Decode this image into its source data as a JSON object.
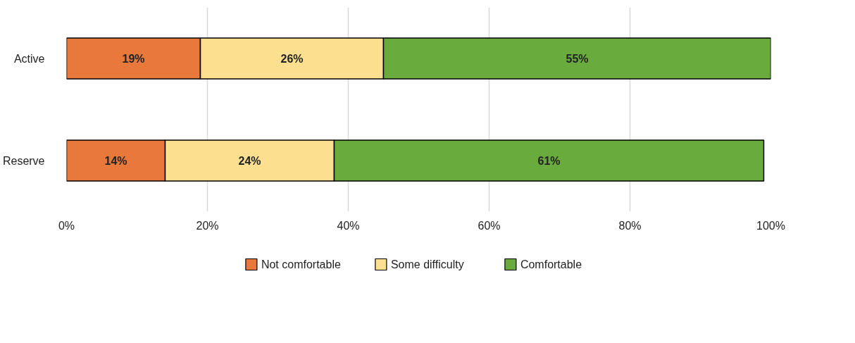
{
  "chart_data": {
    "type": "bar",
    "orientation": "horizontal",
    "stacked": true,
    "categories": [
      "Active",
      "Reserve"
    ],
    "series": [
      {
        "name": "Not comfortable",
        "color": "#e8793a",
        "values": [
          19,
          14
        ],
        "value_labels": [
          "19%",
          "14%"
        ]
      },
      {
        "name": "Some difficulty",
        "color": "#fde08f",
        "values": [
          26,
          24
        ],
        "value_labels": [
          "26%",
          "24%"
        ]
      },
      {
        "name": "Comfortable",
        "color": "#6aab3e",
        "values": [
          55,
          61
        ],
        "value_labels": [
          "55%",
          "61%"
        ]
      }
    ],
    "xlim": [
      0,
      100
    ],
    "xticks": [
      {
        "value": 0,
        "label": "0%"
      },
      {
        "value": 20,
        "label": "20%"
      },
      {
        "value": 40,
        "label": "40%"
      },
      {
        "value": 60,
        "label": "60%"
      },
      {
        "value": 80,
        "label": "80%"
      },
      {
        "value": 100,
        "label": "100%"
      }
    ],
    "grid": "x",
    "legend": "bottom"
  }
}
